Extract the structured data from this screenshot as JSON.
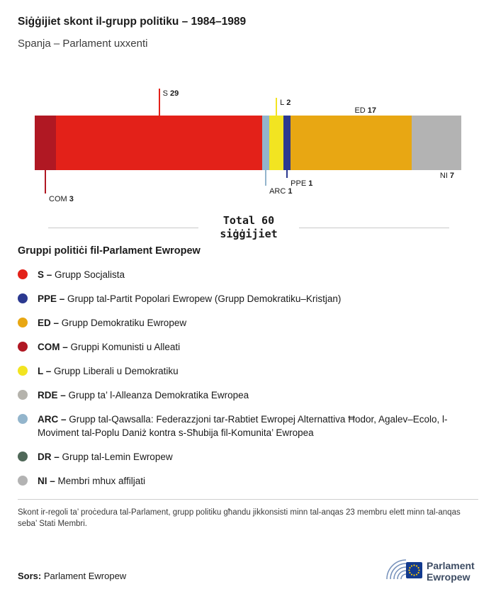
{
  "header": {
    "title": "Siġġijiet skont il-grupp politiku – 1984–1989",
    "subtitle": "Spanja – Parlament uxxenti"
  },
  "chart_data": {
    "type": "bar",
    "variant": "horizontal-stacked-seat-bar",
    "title": "Siġġijiet skont il-grupp politiku – 1984–1989",
    "subtitle": "Spanja – Parlament uxxenti",
    "total_seats": 60,
    "total_label_line1": "Total 60",
    "total_label_line2": "siġġijiet",
    "segments": [
      {
        "code": "COM",
        "seats": 3,
        "color": "#b01823",
        "annotation": {
          "side": "below",
          "line_len": 33
        }
      },
      {
        "code": "S",
        "seats": 29,
        "color": "#e32119",
        "annotation": {
          "side": "above",
          "line_len": 38
        }
      },
      {
        "code": "ARC",
        "seats": 1,
        "color": "#93b5cc",
        "annotation": {
          "side": "below",
          "line_len": 22
        }
      },
      {
        "code": "L",
        "seats": 2,
        "color": "#f2e421",
        "annotation": {
          "side": "above",
          "line_len": 25
        }
      },
      {
        "code": "PPE",
        "seats": 1,
        "color": "#2b3990",
        "annotation": {
          "side": "below",
          "line_len": 11
        }
      },
      {
        "code": "ED",
        "seats": 17,
        "color": "#e8a713",
        "annotation": {
          "side": "above",
          "line_len": 0
        }
      },
      {
        "code": "NI",
        "seats": 7,
        "color": "#b3b3b3",
        "annotation": {
          "side": "below",
          "line_len": 0
        }
      }
    ]
  },
  "legend": {
    "heading": "Gruppi politiċi fil-Parlament Ewropew",
    "items": [
      {
        "code": "S",
        "name": "Grupp Socjalista",
        "color": "#e32119"
      },
      {
        "code": "PPE",
        "name": "Grupp tal-Partit Popolari Ewropew (Grupp Demokratiku–Kristjan)",
        "color": "#2b3990"
      },
      {
        "code": "ED",
        "name": "Grupp Demokratiku Ewropew",
        "color": "#e8a713"
      },
      {
        "code": "COM",
        "name": "Gruppi Komunisti u Alleati",
        "color": "#b01823"
      },
      {
        "code": "L",
        "name": "Grupp Liberali u Demokratiku",
        "color": "#f2e421"
      },
      {
        "code": "RDE",
        "name": "Grupp ta’ l-Alleanza Demokratika Ewropea",
        "color": "#b5b3ac"
      },
      {
        "code": "ARC",
        "name": "Grupp tal-Qawsalla: Federazzjoni tar-Rabtiet Ewropej Alternattiva Ħodor, Agalev–Ecolo, l-Moviment tal-Poplu Daniż kontra s-Sħubija fil-Komunita’ Ewropea",
        "color": "#93b5cc"
      },
      {
        "code": "DR",
        "name": "Grupp tal-Lemin Ewropew",
        "color": "#4f6858"
      },
      {
        "code": "NI",
        "name": "Membri mhux affiljati",
        "color": "#b3b3b3"
      }
    ]
  },
  "footnote": "Skont ir-regoli ta’ proċedura tal-Parlament, grupp politiku għandu jikkonsisti minn tal-anqas 23 membru elett minn tal-anqas seba’ Stati Membri.",
  "source": {
    "label": "Sors:",
    "value": "Parlament Ewropew"
  },
  "logo": {
    "line1": "Parlament",
    "line2": "Ewropew"
  }
}
